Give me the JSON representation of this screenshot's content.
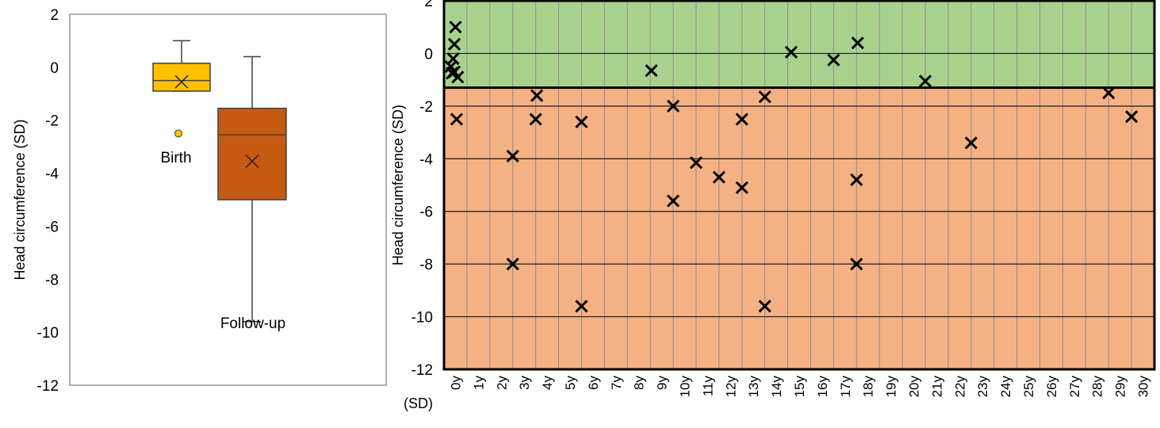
{
  "chart_data": [
    {
      "type": "box",
      "ylabel": "Head circumference (SD)",
      "ylim": [
        -12,
        2
      ],
      "yticks": [
        2,
        0,
        -2,
        -4,
        -6,
        -8,
        -10,
        -12
      ],
      "colors": {
        "birth": "#ffc000",
        "follow_up": "#c55a11",
        "border": "#404040"
      },
      "boxes": [
        {
          "name": "Birth",
          "whisker_low": -0.9,
          "q1": -0.9,
          "median": -0.5,
          "q3": 0.15,
          "whisker_high": 1.0,
          "mean": -0.55,
          "outliers": [
            -2.5
          ]
        },
        {
          "name": "Follow-up",
          "whisker_low": -9.6,
          "q1": -5.0,
          "median": -2.55,
          "q3": -1.55,
          "whisker_high": 0.4,
          "mean": -3.55,
          "outliers": []
        }
      ]
    },
    {
      "type": "scatter",
      "ylabel": "Head circumference (SD)",
      "ylim": [
        -12,
        2
      ],
      "yticks": [
        2,
        0,
        -2,
        -4,
        -6,
        -8,
        -10,
        -12
      ],
      "y_unit_label": "(SD)",
      "xlim": [
        0,
        31
      ],
      "xtick_labels": [
        "0y",
        "1y",
        "2y",
        "3y",
        "4y",
        "5y",
        "6y",
        "7y",
        "8y",
        "9y",
        "10y",
        "11y",
        "12y",
        "13y",
        "14y",
        "15y",
        "16y",
        "17y",
        "18y",
        "19y",
        "20y",
        "21y",
        "22y",
        "23y",
        "24y",
        "25y",
        "26y",
        "27y",
        "28y",
        "29y",
        "30y"
      ],
      "threshold": -1.3,
      "colors": {
        "above": "#a9d18e",
        "below": "#f4b183",
        "marker": "#000000"
      },
      "points": [
        {
          "x": 0.5,
          "y": 1.0
        },
        {
          "x": 0.45,
          "y": 0.35
        },
        {
          "x": 0.4,
          "y": -0.2
        },
        {
          "x": 0.3,
          "y": -0.5
        },
        {
          "x": 0.45,
          "y": -0.7
        },
        {
          "x": 0.35,
          "y": -0.75
        },
        {
          "x": 0.6,
          "y": -0.9
        },
        {
          "x": 0.55,
          "y": -2.5
        },
        {
          "x": 3.0,
          "y": -3.9
        },
        {
          "x": 3.0,
          "y": -8.0
        },
        {
          "x": 4.05,
          "y": -1.6
        },
        {
          "x": 4.0,
          "y": -2.5
        },
        {
          "x": 6.0,
          "y": -2.6
        },
        {
          "x": 6.0,
          "y": -9.6
        },
        {
          "x": 9.05,
          "y": -0.65
        },
        {
          "x": 10.0,
          "y": -2.0
        },
        {
          "x": 10.0,
          "y": -5.6
        },
        {
          "x": 11.0,
          "y": -4.15
        },
        {
          "x": 12.0,
          "y": -4.7
        },
        {
          "x": 13.0,
          "y": -2.5
        },
        {
          "x": 13.0,
          "y": -5.1
        },
        {
          "x": 14.0,
          "y": -1.65
        },
        {
          "x": 14.0,
          "y": -9.6
        },
        {
          "x": 15.15,
          "y": 0.05
        },
        {
          "x": 17.0,
          "y": -0.25
        },
        {
          "x": 18.05,
          "y": 0.4
        },
        {
          "x": 18.0,
          "y": -4.8
        },
        {
          "x": 18.0,
          "y": -8.0
        },
        {
          "x": 21.0,
          "y": -1.05
        },
        {
          "x": 23.0,
          "y": -3.4
        },
        {
          "x": 29.0,
          "y": -1.5
        },
        {
          "x": 30.0,
          "y": -2.4
        }
      ]
    }
  ]
}
